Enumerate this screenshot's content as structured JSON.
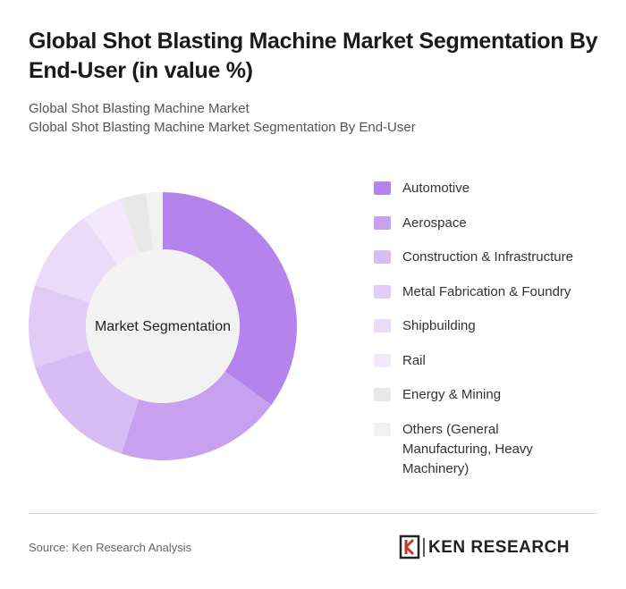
{
  "title": "Global Shot Blasting Machine Market Segmentation By End-User (in value %)",
  "subtitle_1": "Global Shot Blasting Machine Market",
  "subtitle_2": "Global Shot Blasting Machine Market Segmentation By End-User",
  "chart_data": {
    "type": "donut",
    "center_label": "Market Segmentation",
    "categories": [
      "Automotive",
      "Aerospace",
      "Construction & Infrastructure",
      "Metal Fabrication & Foundry",
      "Shipbuilding",
      "Rail",
      "Energy & Mining",
      "Others (General Manufacturing, Heavy Machinery)"
    ],
    "values": [
      35,
      20,
      15,
      10,
      10,
      5,
      3,
      2
    ],
    "colors": [
      "#b583ec",
      "#c8a0f0",
      "#d8bdf5",
      "#e0ccf7",
      "#eadcf9",
      "#f2eafc",
      "#e8e8e8",
      "#f1f1f1"
    ],
    "legend": "right"
  },
  "source": "Source: Ken Research Analysis",
  "logo": "KEN RESEARCH"
}
